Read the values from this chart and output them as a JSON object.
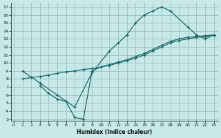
{
  "xlabel": "Humidex (Indice chaleur)",
  "bg_color": "#c8e8e8",
  "grid_color": "#9bbfbf",
  "line_color": "#1a6b6b",
  "xlim": [
    -0.3,
    23.5
  ],
  "ylim": [
    2.8,
    17.5
  ],
  "xticks": [
    0,
    1,
    2,
    3,
    4,
    5,
    6,
    7,
    8,
    9,
    10,
    11,
    12,
    13,
    14,
    15,
    16,
    17,
    18,
    19,
    20,
    21,
    22,
    23
  ],
  "yticks": [
    3,
    4,
    5,
    6,
    7,
    8,
    9,
    10,
    11,
    12,
    13,
    14,
    15,
    16,
    17
  ],
  "curve1_x": [
    1,
    3,
    5,
    7,
    9,
    11,
    12,
    13,
    14,
    15,
    16,
    17,
    18,
    20,
    21,
    22,
    23
  ],
  "curve1_y": [
    9,
    7.5,
    6.0,
    4.5,
    8.8,
    11.5,
    12.5,
    13.5,
    15.0,
    16.0,
    16.5,
    17.0,
    16.5,
    14.5,
    13.5,
    13.0,
    13.5
  ],
  "curve2_x": [
    1,
    2,
    3,
    4,
    5,
    6,
    7,
    8,
    9,
    10,
    11,
    12,
    13,
    14,
    15,
    16,
    17,
    18,
    19,
    20,
    21,
    22,
    23
  ],
  "curve2_y": [
    8.0,
    8.2,
    8.3,
    8.5,
    8.7,
    8.9,
    9.0,
    9.2,
    9.3,
    9.5,
    9.7,
    10.0,
    10.3,
    10.6,
    11.0,
    11.5,
    12.0,
    12.5,
    12.8,
    13.0,
    13.2,
    13.3,
    13.5
  ],
  "curve3_x": [
    3,
    4,
    5,
    6,
    7,
    8,
    9,
    10,
    11,
    12,
    13,
    14,
    15,
    16,
    17,
    18,
    19,
    20,
    21,
    22,
    23
  ],
  "curve3_y": [
    7.2,
    6.2,
    5.5,
    5.2,
    3.2,
    3.0,
    9.0,
    9.5,
    9.8,
    10.1,
    10.4,
    10.8,
    11.2,
    11.7,
    12.2,
    12.7,
    13.0,
    13.2,
    13.3,
    13.4,
    13.5
  ]
}
